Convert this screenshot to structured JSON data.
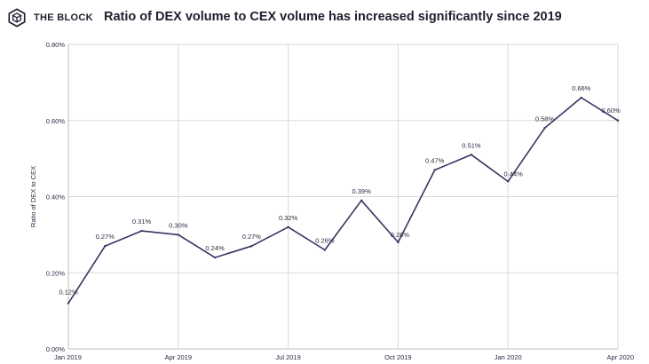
{
  "brand": {
    "name": "THE BLOCK",
    "logo_icon": "cube-in-hexagon-icon"
  },
  "colors": {
    "line": "#3b3260",
    "text": "#2a2a40",
    "grid": "#d9d9d9",
    "axis": "#bdbdbd"
  },
  "chart_data": {
    "type": "line",
    "title": "Ratio of DEX volume to CEX volume has increased significantly since 2019",
    "ylabel": "Ratio of DEX to CEX",
    "xlabel": "",
    "ylim": [
      0,
      0.8
    ],
    "y_ticks": [
      0,
      0.2,
      0.4,
      0.6,
      0.8
    ],
    "y_tick_labels": [
      "0.00%",
      "0.20%",
      "0.40%",
      "0.60%",
      "0.80%"
    ],
    "x_ticks": [
      "Jan 2019",
      "Apr 2019",
      "Jul 2019",
      "Oct 2019",
      "Jan 2020",
      "Apr 2020"
    ],
    "grid": true,
    "series": [
      {
        "x": [
          "2019-01",
          "2019-02",
          "2019-03",
          "2019-04",
          "2019-05",
          "2019-06",
          "2019-07",
          "2019-08",
          "2019-09",
          "2019-10",
          "2019-11",
          "2019-12",
          "2020-01",
          "2020-02",
          "2020-03",
          "2020-04"
        ],
        "values": [
          0.12,
          0.27,
          0.31,
          0.3,
          0.24,
          0.27,
          0.32,
          0.26,
          0.39,
          0.28,
          0.47,
          0.51,
          0.44,
          0.58,
          0.66,
          0.6
        ],
        "labels": [
          "0.12%",
          "0.27%",
          "0.31%",
          "0.30%",
          "0.24%",
          "0.27%",
          "0.32%",
          "0.26%",
          "0.39%",
          "0.28%",
          "0.47%",
          "0.51%",
          "0.44%",
          "0.58%",
          "0.66%",
          "0.60%"
        ]
      }
    ]
  }
}
